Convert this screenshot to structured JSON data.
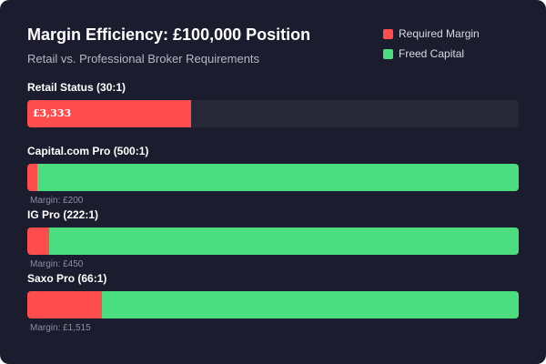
{
  "colors": {
    "background": "#1b1d2e",
    "track": "#262838",
    "required": "#ff4d4d",
    "freed": "#4ade80"
  },
  "chart_data": {
    "type": "bar",
    "orientation": "horizontal",
    "stacked": true,
    "title": "Margin Efficiency: £100,000 Position",
    "subtitle": "Retail vs. Professional Broker Requirements",
    "legend": {
      "placement": "top-right",
      "entries": [
        {
          "name": "Required Margin",
          "color": "#ff4d4d"
        },
        {
          "name": "Freed Capital",
          "color": "#4ade80"
        }
      ]
    },
    "position_size": 100000,
    "xlim": [
      0,
      10000
    ],
    "rows": [
      {
        "label": "Retail Status (30:1)",
        "required": 3333,
        "required_label": "£3,333",
        "show_freed": false,
        "margin_text": ""
      },
      {
        "label": "Capital.com Pro (500:1)",
        "required": 200,
        "required_label": "",
        "show_freed": true,
        "margin_text": "Margin: £200"
      },
      {
        "label": "IG Pro (222:1)",
        "required": 450,
        "required_label": "",
        "show_freed": true,
        "margin_text": "Margin: £450"
      },
      {
        "label": "Saxo Pro (66:1)",
        "required": 1515,
        "required_label": "",
        "show_freed": true,
        "margin_text": "Margin: £1,515"
      }
    ]
  }
}
